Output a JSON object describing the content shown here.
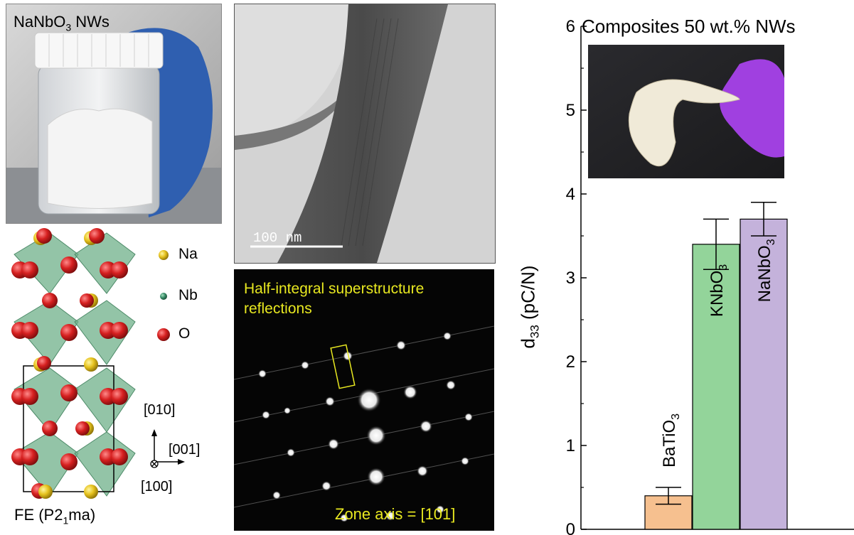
{
  "panel_a": {
    "label_main": "NaNbO",
    "label_sub": "3",
    "label_tail": " NWs"
  },
  "crystal": {
    "legend": [
      {
        "name": "Na",
        "color": "#e6c21e"
      },
      {
        "name": "Nb",
        "color": "#3a8f6b"
      },
      {
        "name": "O",
        "color": "#d62020"
      }
    ],
    "axis_010": "[010]",
    "axis_001": "[001]",
    "axis_100": "[100]",
    "caption_pre": "FE (P2",
    "caption_sub": "1",
    "caption_post": "ma)"
  },
  "tem": {
    "scale_bar": "100 nm"
  },
  "saed": {
    "annotation_line1": "Half-integral superstructure",
    "annotation_line2": "reflections",
    "zone_axis": "Zone axis = [101]"
  },
  "chart_data": {
    "type": "bar",
    "title": "Composites 50 wt.% NWs",
    "ylabel_main": "d",
    "ylabel_sub": "33",
    "ylabel_unit": " (pC/N)",
    "ylim": [
      0,
      6
    ],
    "yticks": [
      "0",
      "1",
      "2",
      "3",
      "4",
      "5",
      "6"
    ],
    "series": [
      {
        "name": "BaTiO3",
        "label_main": "BaTiO",
        "label_sub": "3",
        "value": 0.4,
        "error": 0.1,
        "color": "#f6c08f"
      },
      {
        "name": "KNbO3",
        "label_main": "KNbO",
        "label_sub": "3",
        "value": 3.4,
        "error": 0.3,
        "color": "#93d49a"
      },
      {
        "name": "NaNbO3",
        "label_main": "NaNbO",
        "label_sub": "3",
        "value": 3.7,
        "error": 0.2,
        "color": "#c4b2db"
      }
    ]
  }
}
